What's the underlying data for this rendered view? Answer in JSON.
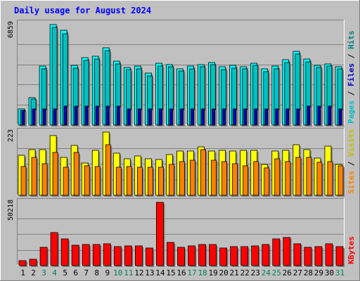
{
  "chart_data": {
    "type": "bar",
    "title": "Daily usage for August 2024",
    "categories": [
      "1",
      "2",
      "3",
      "4",
      "5",
      "6",
      "7",
      "8",
      "9",
      "10",
      "11",
      "12",
      "13",
      "14",
      "15",
      "16",
      "17",
      "18",
      "19",
      "20",
      "21",
      "22",
      "23",
      "24",
      "25",
      "26",
      "27",
      "28",
      "29",
      "30",
      "31"
    ],
    "weekend_days": [
      "3",
      "4",
      "10",
      "11",
      "17",
      "18",
      "24",
      "25",
      "31"
    ],
    "panels": [
      {
        "name": "hits-files-pages",
        "max_label": "6859",
        "ymax": 6859,
        "legend": [
          {
            "text": "Pages",
            "color": "#00c0c0"
          },
          {
            "text": "Files",
            "color": "#0000c0"
          },
          {
            "text": "Hits",
            "color": "#008080"
          }
        ],
        "series": [
          {
            "name": "Hits",
            "color": "#00ffff",
            "values": [
              1100,
              1880,
              3990,
              6820,
              6410,
              4030,
              4560,
              4650,
              5230,
              4320,
              3920,
              3980,
              3510,
              4190,
              4090,
              3800,
              3980,
              4100,
              4250,
              3950,
              4030,
              3960,
              4210,
              3790,
              4000,
              4420,
              5000,
              4480,
              4070,
              4160,
              3970
            ]
          },
          {
            "name": "Files",
            "color": "#00c0c0",
            "values": [
              1000,
              1750,
              3800,
              6600,
              6200,
              3850,
              4380,
              4480,
              5050,
              4150,
              3760,
              3820,
              3350,
              4020,
              3930,
              3650,
              3820,
              3930,
              4080,
              3780,
              3860,
              3800,
              4040,
              3630,
              3830,
              4250,
              4820,
              4300,
              3900,
              3990,
              3810
            ]
          },
          {
            "name": "Pages",
            "color": "#0000c0",
            "values": [
              1000,
              1100,
              1100,
              1100,
              1300,
              1300,
              1300,
              1300,
              1300,
              1300,
              1100,
              1100,
              1100,
              1100,
              1100,
              1100,
              1100,
              1100,
              1100,
              1100,
              1100,
              1100,
              1100,
              1100,
              1100,
              1100,
              1100,
              1300,
              1300,
              1300,
              1100
            ]
          }
        ]
      },
      {
        "name": "visits-sites",
        "max_label": "223",
        "ymax": 223,
        "legend": [
          {
            "text": "Sites",
            "color": "#ff8000"
          },
          {
            "text": "Visits",
            "color": "#c0c000"
          }
        ],
        "series": [
          {
            "name": "Visits",
            "color": "#ffff00",
            "values": [
              140,
              162,
              160,
              210,
              133,
              175,
              115,
              158,
              223,
              148,
              130,
              138,
              130,
              126,
              143,
              157,
              155,
              171,
              157,
              158,
              157,
              158,
              158,
              109,
              155,
              159,
              178,
              160,
              131,
              173,
              108
            ]
          },
          {
            "name": "Sites",
            "color": "#ff8000",
            "values": [
              102,
              133,
              112,
              152,
              98,
              152,
              103,
              102,
              178,
              100,
              102,
              100,
              100,
              99,
              110,
              120,
              123,
              160,
              124,
              118,
              112,
              103,
              118,
              97,
              130,
              120,
              133,
              133,
              116,
              120,
              103
            ]
          }
        ]
      },
      {
        "name": "kbytes",
        "max_label": "50218",
        "ymax": 50218,
        "legend": [
          {
            "text": "KBytes",
            "color": "#ff0000"
          }
        ],
        "series": [
          {
            "name": "KBytes",
            "color": "#ff0000",
            "values": [
              4000,
              5300,
              14500,
              26500,
              21000,
              16400,
              16500,
              16500,
              17500,
              15200,
              15500,
              15800,
              14000,
              50218,
              18400,
              14500,
              15700,
              16500,
              16500,
              14000,
              15100,
              15000,
              15600,
              16600,
              21200,
              22200,
              17500,
              14500,
              15200,
              17400,
              14800
            ]
          }
        ]
      }
    ]
  }
}
